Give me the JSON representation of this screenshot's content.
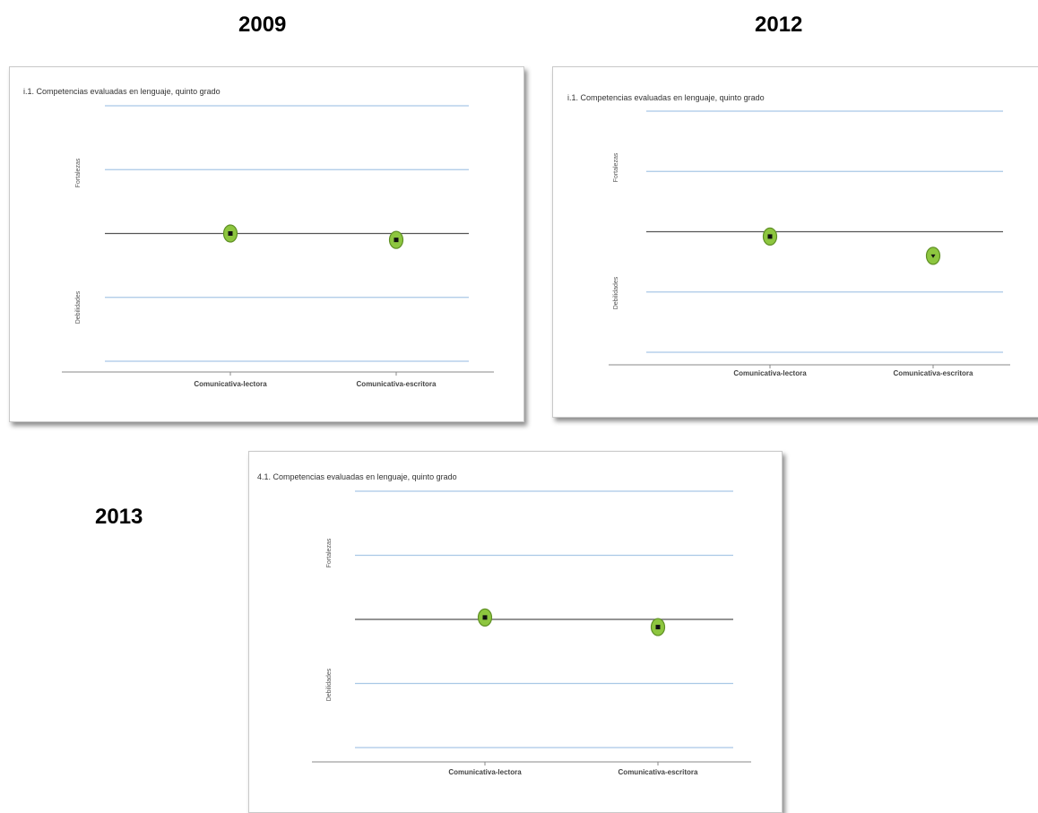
{
  "years": [
    "2009",
    "2012",
    "2013"
  ],
  "chart_data": [
    {
      "type": "scatter",
      "title": "i.1. Competencias evaluadas en lenguaje, quinto grado",
      "categories": [
        "Comunicativa-lectora",
        "Comunicativa-escritora"
      ],
      "y_labels": [
        "Fortalezas",
        "Debilidades"
      ],
      "ylim": [
        -2,
        2
      ],
      "gridlines": [
        2,
        1,
        0,
        -1,
        -2
      ],
      "values": [
        0.0,
        -0.1
      ],
      "markers": [
        "square",
        "square"
      ]
    },
    {
      "type": "scatter",
      "title": "i.1. Competencias evaluadas en lenguaje, quinto grado",
      "categories": [
        "Comunicativa-lectora",
        "Comunicativa-escritora"
      ],
      "y_labels": [
        "Fortalezas",
        "Debilidades"
      ],
      "ylim": [
        -2,
        2
      ],
      "gridlines": [
        2,
        1,
        0,
        -1,
        -2
      ],
      "values": [
        -0.08,
        -0.4
      ],
      "markers": [
        "square",
        "triangle-down"
      ]
    },
    {
      "type": "scatter",
      "title": "4.1. Competencias evaluadas en lenguaje, quinto grado",
      "categories": [
        "Comunicativa-lectora",
        "Comunicativa-escritora"
      ],
      "y_labels": [
        "Fortalezas",
        "Debilidades"
      ],
      "ylim": [
        -2,
        2
      ],
      "gridlines": [
        2,
        1,
        0,
        -1,
        -2
      ],
      "values": [
        0.03,
        -0.12
      ],
      "markers": [
        "square",
        "square"
      ]
    }
  ],
  "colors": {
    "gridline": "#a9c8e6",
    "zero_line": "#555555",
    "marker_fill": "#8dc63f",
    "marker_ring": "#5f8f25",
    "marker_symbol": "#111111"
  }
}
